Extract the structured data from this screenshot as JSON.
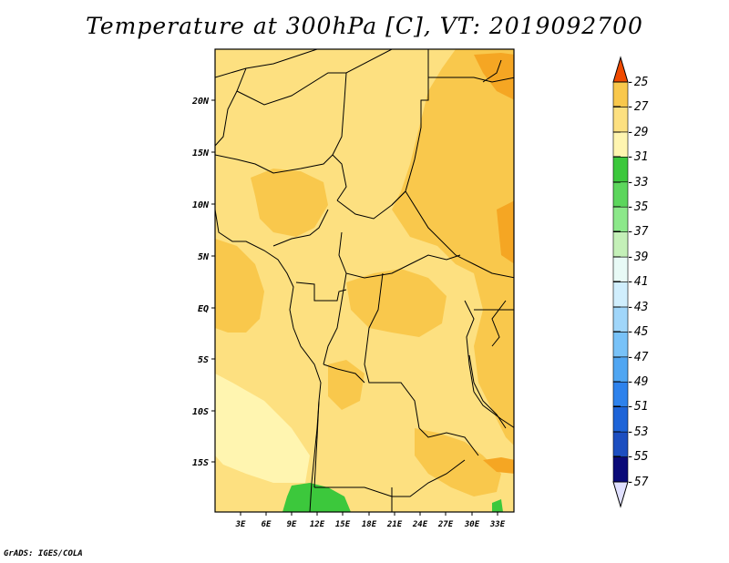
{
  "title": "Temperature at 300hPa [C], VT: 2019092700",
  "footer": "GrADS: IGES/COLA",
  "map": {
    "lat_labels": [
      "20N",
      "15N",
      "10N",
      "5N",
      "EQ",
      "5S",
      "10S",
      "15S"
    ],
    "lon_labels": [
      "3E",
      "6E",
      "9E",
      "12E",
      "15E",
      "18E",
      "21E",
      "24E",
      "27E",
      "30E",
      "33E"
    ]
  },
  "colorbar": {
    "labels": [
      "-25",
      "-27",
      "-29",
      "-31",
      "-33",
      "-35",
      "-37",
      "-39",
      "-41",
      "-43",
      "-45",
      "-47",
      "-49",
      "-51",
      "-53",
      "-55",
      "-57"
    ],
    "colors": [
      "#e0e0ff",
      "#0a0a78",
      "#1c4ec0",
      "#1e64d8",
      "#2e82ec",
      "#50a6f2",
      "#78c2f8",
      "#a0d6fa",
      "#d0eefd",
      "#e8faf6",
      "#c4f0b8",
      "#8ce88a",
      "#5cd65c",
      "#3cc83c",
      "#fff5b0",
      "#fde080",
      "#f9c84c",
      "#f5a623",
      "#ff7c00",
      "#f04a00"
    ]
  }
}
